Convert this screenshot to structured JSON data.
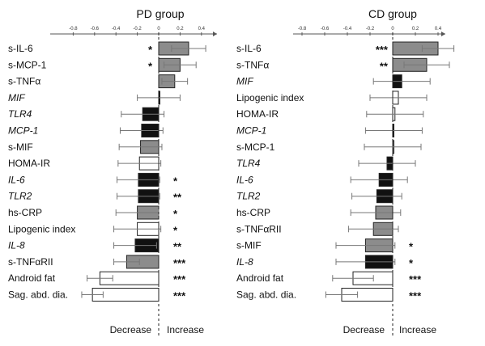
{
  "chart_data": [
    {
      "type": "bar",
      "orientation": "horizontal",
      "title": "PD group",
      "xlim": [
        -0.8,
        0.5
      ],
      "xticks": [
        -0.8,
        -0.6,
        -0.4,
        -0.2,
        0,
        0.2,
        0.4
      ],
      "tick_labels": [
        "-0.8",
        "-0.6",
        "-0.4",
        "-0.2",
        "0",
        "0.2",
        "0.4"
      ],
      "decrease_label": "Decrease",
      "increase_label": "Increase",
      "bars": [
        {
          "label": "s-IL-6",
          "italic": false,
          "value": 0.28,
          "error": 0.16,
          "fill": "gray",
          "sig": "*"
        },
        {
          "label": "s-MCP-1",
          "italic": false,
          "value": 0.2,
          "error": 0.15,
          "fill": "gray",
          "sig": "*"
        },
        {
          "label": "s-TNFα",
          "italic": false,
          "value": 0.15,
          "error": 0.12,
          "fill": "gray",
          "sig": ""
        },
        {
          "label": "MIF",
          "italic": true,
          "value": 0.0,
          "error": 0.2,
          "fill": "black",
          "sig": ""
        },
        {
          "label": "TLR4",
          "italic": true,
          "value": -0.15,
          "error": 0.2,
          "fill": "black",
          "sig": ""
        },
        {
          "label": "MCP-1",
          "italic": true,
          "value": -0.16,
          "error": 0.2,
          "fill": "black",
          "sig": ""
        },
        {
          "label": "s-MIF",
          "italic": false,
          "value": -0.17,
          "error": 0.2,
          "fill": "gray",
          "sig": ""
        },
        {
          "label": "HOMA-IR",
          "italic": false,
          "value": -0.18,
          "error": 0.2,
          "fill": "white",
          "sig": ""
        },
        {
          "label": "IL-6",
          "italic": true,
          "value": -0.19,
          "error": 0.2,
          "fill": "black",
          "sig": "*"
        },
        {
          "label": "TLR2",
          "italic": true,
          "value": -0.19,
          "error": 0.2,
          "fill": "black",
          "sig": "**"
        },
        {
          "label": "hs-CRP",
          "italic": false,
          "value": -0.2,
          "error": 0.2,
          "fill": "gray",
          "sig": "*"
        },
        {
          "label": "Lipogenic index",
          "italic": false,
          "value": -0.2,
          "error": 0.22,
          "fill": "white",
          "sig": "*"
        },
        {
          "label": "IL-8",
          "italic": true,
          "value": -0.22,
          "error": 0.2,
          "fill": "black",
          "sig": "**"
        },
        {
          "label": "s-TNFαRII",
          "italic": false,
          "value": -0.3,
          "error": 0.12,
          "fill": "gray",
          "sig": "***"
        },
        {
          "label": "Android fat",
          "italic": false,
          "value": -0.55,
          "error": 0.12,
          "fill": "white",
          "sig": "***"
        },
        {
          "label": "Sag. abd. dia.",
          "italic": false,
          "value": -0.62,
          "error": 0.1,
          "fill": "white",
          "sig": "***"
        }
      ]
    },
    {
      "type": "bar",
      "orientation": "horizontal",
      "title": "CD group",
      "xlim": [
        -0.8,
        0.5
      ],
      "xticks": [
        -0.8,
        -0.6,
        -0.4,
        -0.2,
        0,
        0.2,
        0.4
      ],
      "tick_labels": [
        "-0.8",
        "-0.6",
        "-0.4",
        "-0.2",
        "0",
        "0.2",
        "0.4"
      ],
      "decrease_label": "Decrease",
      "increase_label": "Increase",
      "bars": [
        {
          "label": "s-IL-6",
          "italic": false,
          "value": 0.4,
          "error": 0.14,
          "fill": "gray",
          "sig": "***"
        },
        {
          "label": "s-TNFα",
          "italic": false,
          "value": 0.3,
          "error": 0.2,
          "fill": "gray",
          "sig": "**"
        },
        {
          "label": "MIF",
          "italic": true,
          "value": 0.08,
          "error": 0.25,
          "fill": "black",
          "sig": ""
        },
        {
          "label": "Lipogenic index",
          "italic": false,
          "value": 0.05,
          "error": 0.25,
          "fill": "white",
          "sig": ""
        },
        {
          "label": "HOMA-IR",
          "italic": false,
          "value": 0.02,
          "error": 0.25,
          "fill": "white",
          "sig": ""
        },
        {
          "label": "MCP-1",
          "italic": true,
          "value": 0.01,
          "error": 0.25,
          "fill": "black",
          "sig": ""
        },
        {
          "label": "s-MCP-1",
          "italic": false,
          "value": 0.0,
          "error": 0.25,
          "fill": "gray",
          "sig": ""
        },
        {
          "label": "TLR4",
          "italic": true,
          "value": -0.05,
          "error": 0.25,
          "fill": "black",
          "sig": ""
        },
        {
          "label": "IL-6",
          "italic": true,
          "value": -0.12,
          "error": 0.25,
          "fill": "black",
          "sig": ""
        },
        {
          "label": "TLR2",
          "italic": true,
          "value": -0.14,
          "error": 0.22,
          "fill": "black",
          "sig": ""
        },
        {
          "label": "hs-CRP",
          "italic": false,
          "value": -0.15,
          "error": 0.22,
          "fill": "gray",
          "sig": ""
        },
        {
          "label": "s-TNFαRII",
          "italic": false,
          "value": -0.17,
          "error": 0.22,
          "fill": "gray",
          "sig": ""
        },
        {
          "label": "s-MIF",
          "italic": false,
          "value": -0.24,
          "error": 0.26,
          "fill": "gray",
          "sig": "*"
        },
        {
          "label": "IL-8",
          "italic": true,
          "value": -0.24,
          "error": 0.26,
          "fill": "black",
          "sig": "*"
        },
        {
          "label": "Android fat",
          "italic": false,
          "value": -0.35,
          "error": 0.18,
          "fill": "white",
          "sig": "***"
        },
        {
          "label": "Sag. abd. dia.",
          "italic": false,
          "value": -0.45,
          "error": 0.14,
          "fill": "white",
          "sig": "***"
        }
      ]
    }
  ],
  "colors": {
    "gray": "#8c8c8c",
    "black": "#111111",
    "white": "#ffffff",
    "stroke": "#222222",
    "error": "#777777",
    "axis": "#555555"
  }
}
